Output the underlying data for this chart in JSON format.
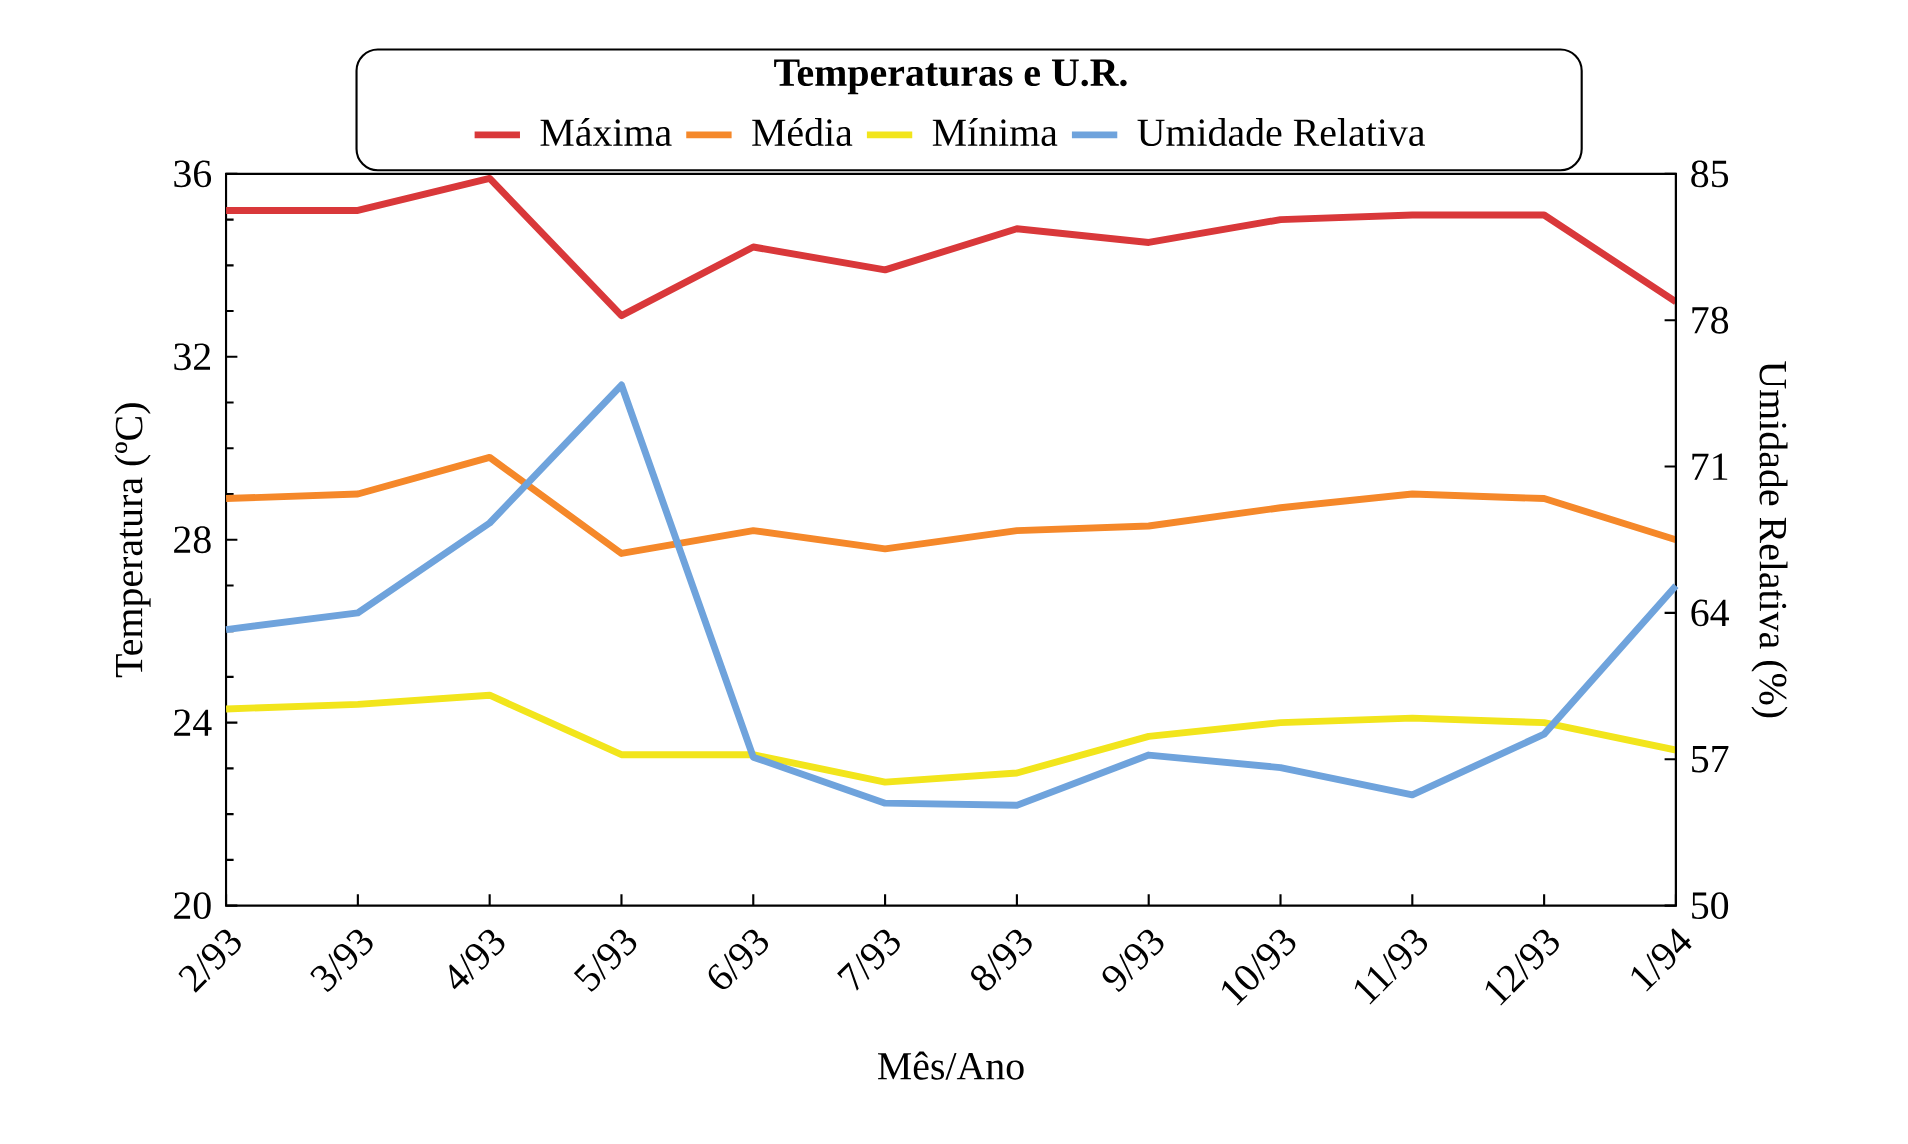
{
  "chart_data": {
    "type": "line",
    "legend_title": "Temperaturas e U.R.",
    "xlabel": "Mês/Ano",
    "ylabel": "Temperatura (ºC)",
    "y2label": "Umidade Relativa (%)",
    "categories": [
      "2/93",
      "3/93",
      "4/93",
      "5/93",
      "6/93",
      "7/93",
      "8/93",
      "9/93",
      "10/93",
      "11/93",
      "12/93",
      "1/94"
    ],
    "series": [
      {
        "name": "Máxima",
        "color": "#d9383a",
        "values": [
          35.2,
          35.2,
          35.9,
          32.9,
          34.4,
          33.9,
          34.8,
          34.5,
          35.0,
          35.1,
          35.1,
          33.2
        ]
      },
      {
        "name": "Média",
        "color": "#f5882a",
        "values": [
          28.9,
          29.0,
          29.8,
          27.7,
          28.2,
          27.8,
          28.2,
          28.3,
          28.7,
          29.0,
          28.9,
          28.0
        ]
      },
      {
        "name": "Mínima",
        "color": "#f2e51c",
        "values": [
          24.3,
          24.4,
          24.6,
          23.3,
          23.3,
          22.7,
          22.9,
          23.7,
          24.0,
          24.1,
          24.0,
          23.4
        ]
      },
      {
        "name": "Umidade Relativa",
        "color": "#6fa3dc",
        "axis": "y2",
        "values": [
          63.2,
          64.0,
          68.3,
          74.9,
          57.1,
          54.9,
          54.8,
          57.2,
          56.6,
          55.3,
          58.2,
          65.3
        ]
      }
    ],
    "ylim": [
      20,
      36
    ],
    "yticks": [
      20,
      24,
      28,
      32,
      36
    ],
    "y2lim": [
      50,
      85
    ],
    "y2ticks": [
      50,
      57,
      64,
      71,
      78,
      85
    ],
    "legend": "top",
    "marker": "none",
    "line_style": "solid",
    "grid": false
  }
}
